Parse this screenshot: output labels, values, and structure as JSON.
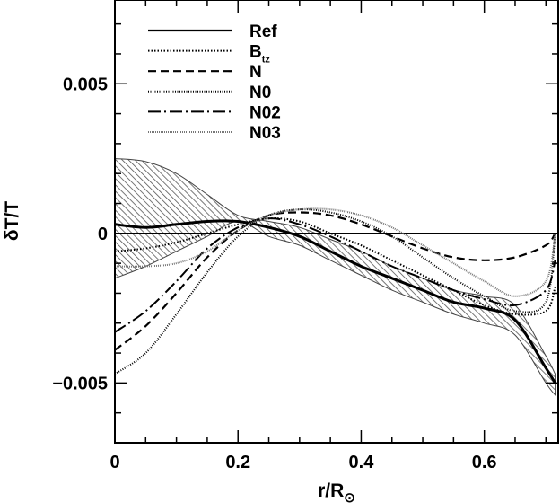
{
  "chart_data": {
    "type": "line",
    "title": "",
    "xlabel": "r/R⊙",
    "ylabel": "δT/T",
    "xlim": [
      0,
      0.72
    ],
    "ylim": [
      -0.007,
      0.0078
    ],
    "x_ticks": [
      {
        "value": 0,
        "label": "0"
      },
      {
        "value": 0.2,
        "label": "0.2"
      },
      {
        "value": 0.4,
        "label": "0.4"
      },
      {
        "value": 0.6,
        "label": "0.6"
      }
    ],
    "y_ticks": [
      {
        "value": 0.005,
        "label": "0.005"
      },
      {
        "value": 0,
        "label": "0"
      },
      {
        "value": -0.005,
        "label": "−0.005"
      }
    ],
    "legend_position": "top-left",
    "reference_line": 0,
    "uncertainty_band": {
      "x": [
        0.0,
        0.05,
        0.1,
        0.15,
        0.2,
        0.25,
        0.3,
        0.35,
        0.4,
        0.45,
        0.5,
        0.55,
        0.6,
        0.65,
        0.7,
        0.715
      ],
      "upper": [
        0.0025,
        0.0024,
        0.002,
        0.0013,
        0.0006,
        0.0004,
        0.0002,
        -0.0002,
        -0.0006,
        -0.0011,
        -0.0015,
        -0.0019,
        -0.0021,
        -0.0024,
        -0.0041,
        -0.0047
      ],
      "lower": [
        -0.0015,
        -0.0011,
        -0.0006,
        -0.0001,
        0.0004,
        -0.0001,
        -0.0004,
        -0.0009,
        -0.0014,
        -0.0019,
        -0.0023,
        -0.0027,
        -0.003,
        -0.0034,
        -0.005,
        -0.0054
      ]
    },
    "series": [
      {
        "name": "Ref",
        "style": "solid",
        "width": 3,
        "x": [
          0.0,
          0.05,
          0.1,
          0.15,
          0.2,
          0.25,
          0.3,
          0.35,
          0.4,
          0.45,
          0.5,
          0.55,
          0.6,
          0.65,
          0.7,
          0.715
        ],
        "y": [
          0.0003,
          0.0002,
          0.0003,
          0.0004,
          0.0004,
          0.0002,
          -0.0001,
          -0.0006,
          -0.0011,
          -0.0015,
          -0.0019,
          -0.0023,
          -0.0025,
          -0.0029,
          -0.0045,
          -0.005
        ]
      },
      {
        "name": "B_tz",
        "style": "dotted",
        "width": 2,
        "x": [
          0.0,
          0.05,
          0.1,
          0.15,
          0.2,
          0.25,
          0.3,
          0.35,
          0.4,
          0.45,
          0.5,
          0.55,
          0.6,
          0.65,
          0.7,
          0.715
        ],
        "y": [
          -0.0006,
          -0.0005,
          -0.0003,
          0.0,
          0.0003,
          0.0005,
          0.0004,
          0.0,
          -0.0004,
          -0.0009,
          -0.0014,
          -0.0019,
          -0.0024,
          -0.0027,
          -0.0026,
          -0.0018
        ]
      },
      {
        "name": "N",
        "style": "dashed",
        "width": 2.2,
        "x": [
          0.0,
          0.05,
          0.1,
          0.15,
          0.2,
          0.25,
          0.3,
          0.35,
          0.4,
          0.45,
          0.5,
          0.55,
          0.6,
          0.65,
          0.7,
          0.715
        ],
        "y": [
          -0.0039,
          -0.0031,
          -0.002,
          -0.0008,
          0.0001,
          0.0006,
          0.0007,
          0.0006,
          0.0003,
          -0.0001,
          -0.0005,
          -0.0008,
          -0.0009,
          -0.0008,
          -0.0004,
          0.0
        ]
      },
      {
        "name": "N0",
        "style": "densedot",
        "width": 2,
        "x": [
          0.0,
          0.05,
          0.1,
          0.15,
          0.2,
          0.25,
          0.3,
          0.35,
          0.4,
          0.45,
          0.5,
          0.55,
          0.6,
          0.65,
          0.7,
          0.715
        ],
        "y": [
          -0.0047,
          -0.004,
          -0.0027,
          -0.0013,
          -0.0001,
          0.0006,
          0.0008,
          0.0007,
          0.0004,
          -0.0001,
          -0.0008,
          -0.0015,
          -0.0021,
          -0.0026,
          -0.0023,
          0.0
        ]
      },
      {
        "name": "N02",
        "style": "dashdot",
        "width": 2,
        "x": [
          0.0,
          0.05,
          0.1,
          0.15,
          0.2,
          0.25,
          0.3,
          0.35,
          0.4,
          0.45,
          0.5,
          0.55,
          0.6,
          0.65,
          0.7,
          0.715
        ],
        "y": [
          -0.0033,
          -0.0026,
          -0.0016,
          -0.0005,
          0.0002,
          0.0005,
          0.0003,
          -0.0001,
          -0.0006,
          -0.0011,
          -0.0015,
          -0.0019,
          -0.0022,
          -0.0024,
          -0.0019,
          -0.0009
        ]
      },
      {
        "name": "N03",
        "style": "grey",
        "width": 2,
        "x": [
          0.0,
          0.05,
          0.1,
          0.15,
          0.2,
          0.25,
          0.3,
          0.35,
          0.4,
          0.45,
          0.5,
          0.55,
          0.6,
          0.65,
          0.7,
          0.715
        ],
        "y": [
          -0.0011,
          -0.0011,
          -0.001,
          -0.0006,
          0.0001,
          0.0006,
          0.0008,
          0.0008,
          0.0006,
          0.0002,
          -0.0004,
          -0.001,
          -0.0016,
          -0.0021,
          -0.0016,
          0.0
        ]
      }
    ],
    "legend": {
      "entries": [
        {
          "label": "Ref",
          "subscript": ""
        },
        {
          "label": "B",
          "subscript": "tz"
        },
        {
          "label": "N",
          "subscript": ""
        },
        {
          "label": "N0",
          "subscript": ""
        },
        {
          "label": "N02",
          "subscript": ""
        },
        {
          "label": "N03",
          "subscript": ""
        }
      ]
    }
  }
}
